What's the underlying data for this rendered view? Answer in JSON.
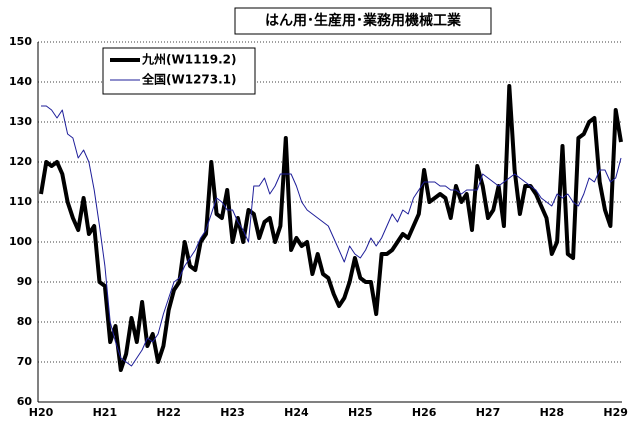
{
  "chart_data": {
    "type": "line",
    "title": "はん用･生産用･業務用機械工業",
    "categories": [
      "H20",
      null,
      null,
      null,
      null,
      null,
      null,
      null,
      null,
      null,
      null,
      null,
      "H21",
      null,
      null,
      null,
      null,
      null,
      null,
      null,
      null,
      null,
      null,
      null,
      "H22",
      null,
      null,
      null,
      null,
      null,
      null,
      null,
      null,
      null,
      null,
      null,
      "H23",
      null,
      null,
      null,
      null,
      null,
      null,
      null,
      null,
      null,
      null,
      null,
      "H24",
      null,
      null,
      null,
      null,
      null,
      null,
      null,
      null,
      null,
      null,
      null,
      "H25",
      null,
      null,
      null,
      null,
      null,
      null,
      null,
      null,
      null,
      null,
      null,
      "H26",
      null,
      null,
      null,
      null,
      null,
      null,
      null,
      null,
      null,
      null,
      null,
      "H27",
      null,
      null,
      null,
      null,
      null,
      null,
      null,
      null,
      null,
      null,
      null,
      "H28",
      null,
      null,
      null,
      null,
      null,
      null,
      null,
      null,
      null,
      null,
      null,
      "H29",
      null
    ],
    "series": [
      {
        "name": "九州(W1119.2)",
        "color": "#000000",
        "width": 4,
        "values": [
          112,
          120,
          119,
          120,
          117,
          110,
          106,
          103,
          111,
          102,
          104,
          90,
          89,
          75,
          79,
          68,
          72,
          81,
          75,
          85,
          74,
          77,
          70,
          74,
          83,
          88,
          90,
          100,
          94,
          93,
          100,
          102,
          120,
          107,
          106,
          113,
          100,
          106,
          100,
          108,
          107,
          101,
          105,
          106,
          100,
          104,
          126,
          98,
          101,
          99,
          100,
          92,
          97,
          92,
          91,
          87,
          84,
          86,
          90,
          96,
          91,
          90,
          90,
          82,
          97,
          97,
          98,
          100,
          102,
          101,
          104,
          107,
          118,
          110,
          111,
          112,
          111,
          106,
          114,
          110,
          112,
          103,
          119,
          114,
          106,
          108,
          114,
          104,
          139,
          118,
          107,
          114,
          114,
          112,
          109,
          106,
          97,
          100,
          124,
          97,
          96,
          126,
          127,
          130,
          131,
          115,
          108,
          104,
          133,
          125
        ]
      },
      {
        "name": "全国(W1273.1)",
        "color": "#1f1f9a",
        "width": 1,
        "values": [
          134,
          134,
          133,
          131,
          133,
          127,
          126,
          121,
          123,
          120,
          113,
          104,
          94,
          80,
          75,
          71,
          70,
          69,
          71,
          73,
          76,
          75,
          77,
          82,
          86,
          90,
          91,
          94,
          96,
          98,
          101,
          103,
          107,
          111,
          110,
          108,
          108,
          105,
          103,
          100,
          114,
          114,
          116,
          112,
          114,
          117,
          117,
          117,
          114,
          110,
          108,
          107,
          106,
          105,
          104,
          101,
          98,
          95,
          99,
          97,
          96,
          98,
          101,
          99,
          101,
          104,
          107,
          105,
          108,
          107,
          111,
          113,
          115,
          115,
          115,
          114,
          114,
          113,
          113,
          112,
          113,
          113,
          113,
          117,
          116,
          115,
          114,
          115,
          116,
          117,
          116,
          115,
          114,
          113,
          111,
          110,
          109,
          112,
          111,
          112,
          110,
          109,
          112,
          116,
          115,
          118,
          118,
          115,
          116,
          121
        ]
      }
    ],
    "ylim": [
      60,
      150
    ],
    "yticks": [
      60,
      70,
      80,
      90,
      100,
      110,
      120,
      130,
      140,
      150
    ],
    "grid": true
  }
}
